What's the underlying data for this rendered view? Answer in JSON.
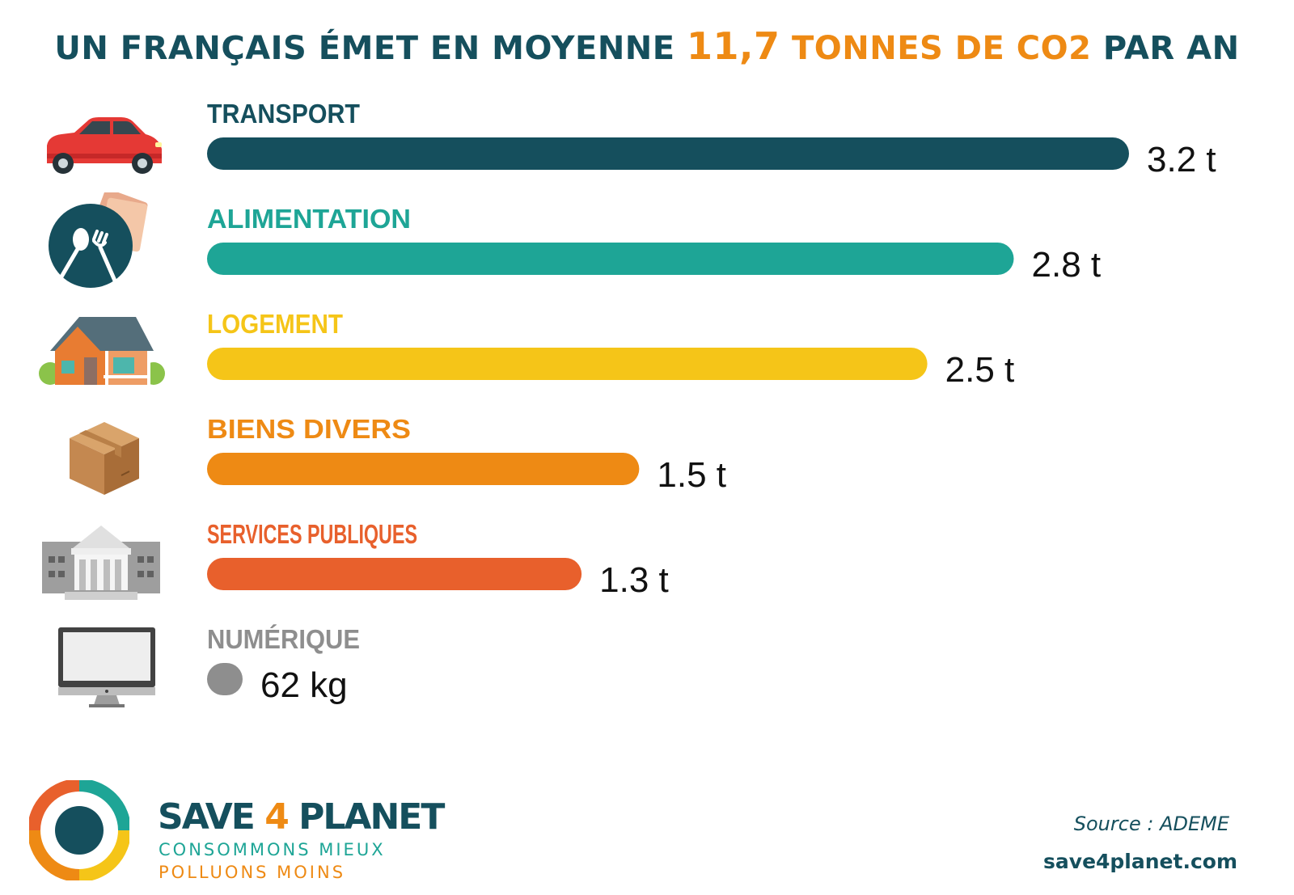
{
  "title": {
    "prefix": "UN FRANÇAIS ÉMET EN MOYENNE ",
    "number": "11,7",
    "unit": " TONNES DE CO2",
    "suffix": " PAR AN"
  },
  "colors": {
    "title": "#154f5d",
    "highlight": "#ee8a14",
    "value_text": "#111111"
  },
  "chart_data": {
    "type": "bar",
    "orientation": "horizontal",
    "unit": "t CO2",
    "categories": [
      "TRANSPORT",
      "ALIMENTATION",
      "LOGEMENT",
      "BIENS DIVERS",
      "SERVICES PUBLIQUES",
      "NUMÉRIQUE"
    ],
    "values": [
      3.2,
      2.8,
      2.5,
      1.5,
      1.3,
      0.062
    ],
    "value_labels": [
      "3.2 t",
      "2.8 t",
      "2.5 t",
      "1.5 t",
      "1.3 t",
      "62 kg"
    ],
    "colors": [
      "#154f5d",
      "#1ea596",
      "#f5c518",
      "#ee8a14",
      "#e8602c",
      "#8e8e8e"
    ],
    "icons": [
      "car-icon",
      "plate-cutlery-icon",
      "house-icon",
      "box-icon",
      "bank-building-icon",
      "monitor-icon"
    ],
    "xlim": [
      0,
      3.2
    ],
    "grid": false,
    "legend": "none"
  },
  "footer": {
    "brand_prefix": "SAVE ",
    "brand_four": "4",
    "brand_suffix": " PLANET",
    "tagline_1": "CONSOMMONS MIEUX",
    "tagline_2": "POLLUONS MOINS",
    "source": "Source : ADEME",
    "website": "save4planet.com"
  }
}
